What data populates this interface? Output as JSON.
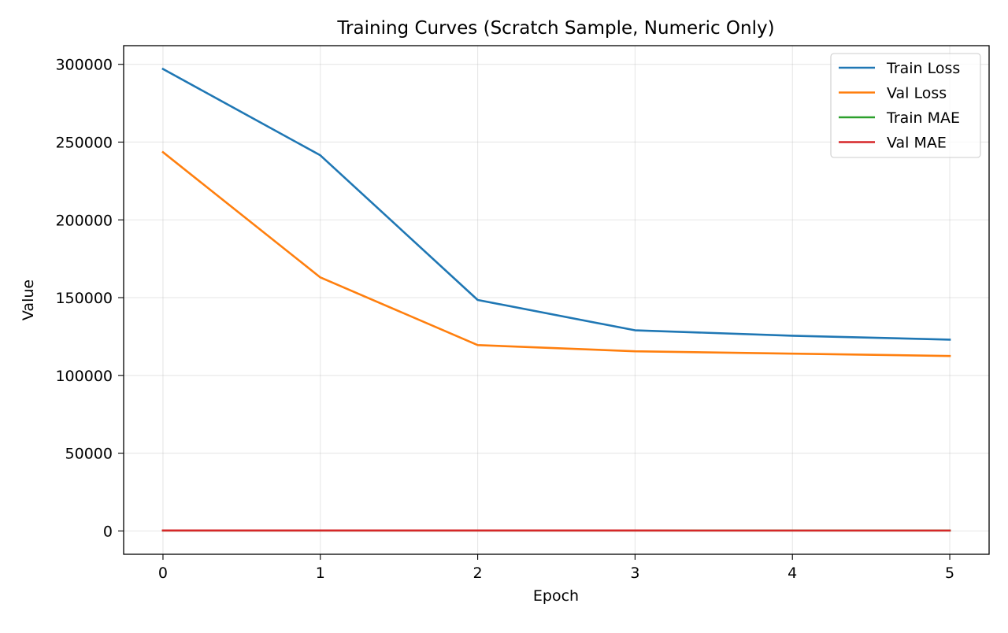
{
  "chart_data": {
    "type": "line",
    "title": "Training Curves (Scratch Sample, Numeric Only)",
    "xlabel": "Epoch",
    "ylabel": "Value",
    "x": [
      0,
      1,
      2,
      3,
      4,
      5
    ],
    "xlim": [
      -0.25,
      5.25
    ],
    "ylim": [
      -15000,
      312000
    ],
    "xticks": [
      0,
      1,
      2,
      3,
      4,
      5
    ],
    "yticks": [
      0,
      50000,
      100000,
      150000,
      200000,
      250000,
      300000
    ],
    "grid": true,
    "legend_position": "top-right",
    "series": [
      {
        "name": "Train Loss",
        "color": "#1f77b4",
        "values": [
          297000,
          241500,
          148500,
          129000,
          125500,
          123000
        ]
      },
      {
        "name": "Val Loss",
        "color": "#ff7f0e",
        "values": [
          243500,
          163000,
          119500,
          115500,
          114000,
          112500
        ]
      },
      {
        "name": "Train MAE",
        "color": "#2ca02c",
        "values": [
          300,
          280,
          260,
          255,
          250,
          248
        ]
      },
      {
        "name": "Val MAE",
        "color": "#d62728",
        "values": [
          300,
          280,
          260,
          255,
          250,
          248
        ]
      }
    ]
  }
}
